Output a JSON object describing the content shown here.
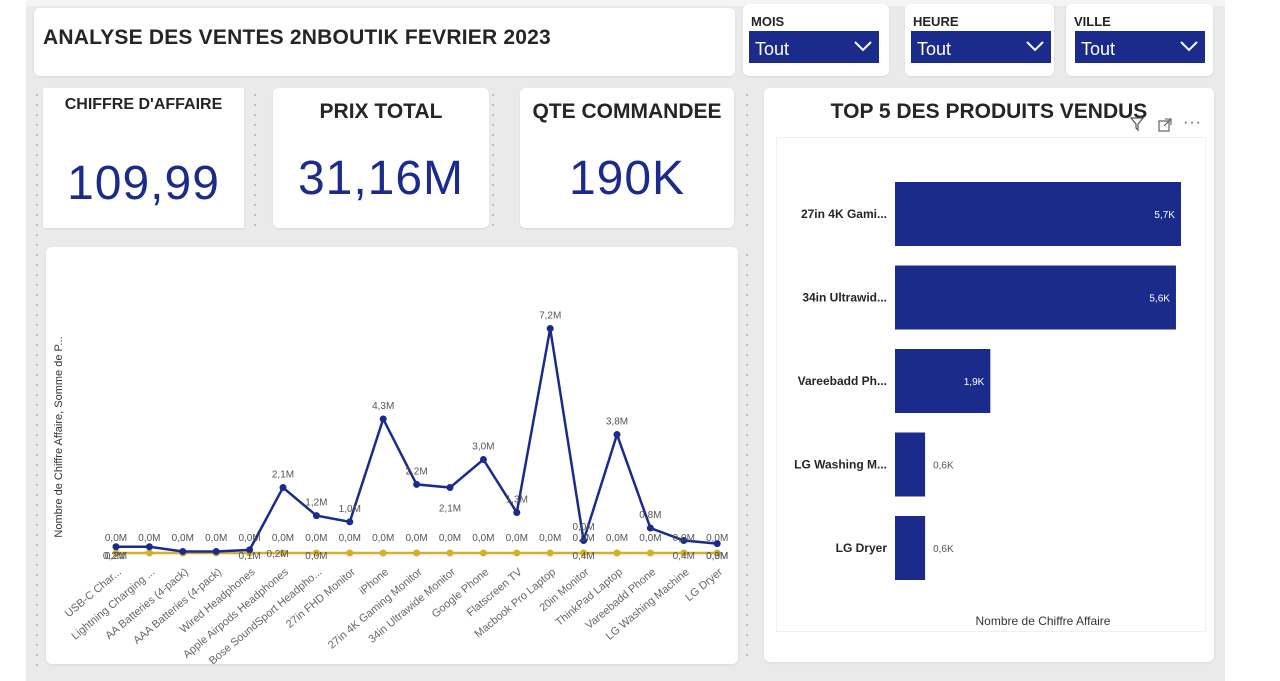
{
  "title": "ANALYSE DES VENTES 2NBOUTIK FEVRIER 2023",
  "slicers": [
    {
      "label": "MOIS",
      "value": "Tout"
    },
    {
      "label": "HEURE",
      "value": "Tout"
    },
    {
      "label": "VILLE",
      "value": "Tout"
    }
  ],
  "kpis": {
    "ca": {
      "label": "CHIFFRE D'AFFAIRE",
      "value": "109,99"
    },
    "prix": {
      "label": "PRIX TOTAL",
      "value": "31,16M"
    },
    "qte": {
      "label": "QTE COMMANDEE",
      "value": "190K"
    }
  },
  "top5": {
    "title": "TOP 5 DES PRODUITS VENDUS",
    "xlabel": "Nombre de Chiffre Affaire",
    "icons": [
      "filter-icon",
      "expand-icon",
      "more-icon"
    ]
  },
  "chart_data": [
    {
      "type": "line",
      "title": "",
      "ylabel": "Nombre de Chiffre Affaire, Somme de P...",
      "categories": [
        "USB-C Char...",
        "Lightning Charging ...",
        "AA Batteries (4-pack)",
        "AAA Batteries (4-pack)",
        "Wired Headphones",
        "Apple Airpods Headphones",
        "Bose SoundSport Headpho...",
        "27in FHD Monitor",
        "iPhone",
        "27in 4K Gaming Monitor",
        "34in Ultrawide Monitor",
        "Google Phone",
        "Flatscreen TV",
        "Macbook Pro Laptop",
        "20in Monitor",
        "ThinkPad Laptop",
        "Vareebadd Phone",
        "LG Washing Machine",
        "LG Dryer"
      ],
      "ylim": [
        0,
        7.5
      ],
      "series": [
        {
          "values": [
            0.2,
            0.2,
            0.05,
            0.05,
            0.1,
            2.1,
            1.2,
            1.0,
            4.3,
            2.2,
            2.1,
            3.0,
            1.3,
            7.2,
            0.4,
            3.8,
            0.8,
            0.4,
            0.3
          ],
          "labels": [
            "0,2M",
            "",
            "",
            "",
            "0,1M",
            "2,1M",
            "1,2M",
            "1,0M",
            "4,3M",
            "2,2M",
            "2,1M",
            "3,0M",
            "1,3M",
            "7,2M",
            "0,4M",
            "3,8M",
            "0,8M",
            "0,4M",
            "0,3M"
          ],
          "color": "#1b2b8c"
        },
        {
          "values": [
            0,
            0,
            0,
            0,
            0,
            0,
            0,
            0,
            0,
            0,
            0,
            0,
            0,
            0,
            0,
            0,
            0,
            0,
            0
          ],
          "labels": [
            "0,0M",
            "0,0M",
            "0,0M",
            "0,0M",
            "0,0M",
            "0,0M",
            "0,0M",
            "0,0M",
            "0,0M",
            "0,0M",
            "0,0M",
            "0,0M",
            "0,0M",
            "0,0M",
            "0,0M",
            "0,0M",
            "0,0M",
            "0,0M",
            "0,0M"
          ],
          "color": "#d4af2c"
        }
      ],
      "extra_labels": [
        "0,2M",
        "0,2M",
        "0,0M",
        "0,0M",
        "0,0M"
      ]
    },
    {
      "type": "bar",
      "orientation": "horizontal",
      "title": "TOP 5 DES PRODUITS VENDUS",
      "xlabel": "Nombre de Chiffre Affaire",
      "categories": [
        "27in 4K Gami...",
        "34in Ultrawid...",
        "Vareebadd Ph...",
        "LG Washing M...",
        "LG Dryer"
      ],
      "values": [
        5.7,
        5.6,
        1.9,
        0.6,
        0.6
      ],
      "labels": [
        "5,7K",
        "5,6K",
        "1,9K",
        "0,6K",
        "0,6K"
      ],
      "xlim": [
        0,
        5.8
      ],
      "color": "#1b2b8c"
    }
  ]
}
